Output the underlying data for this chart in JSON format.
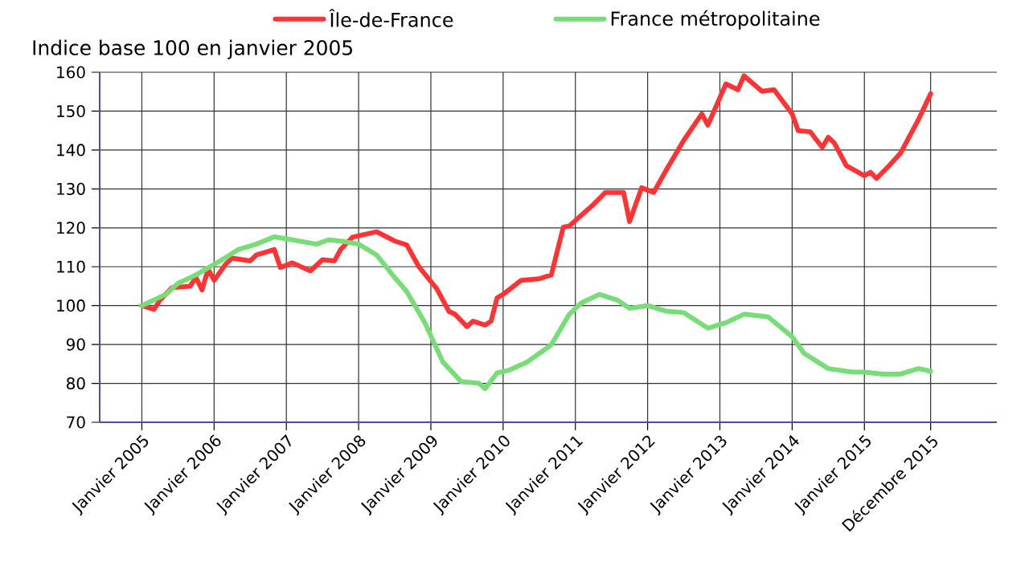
{
  "chart_data": {
    "type": "line",
    "title": "Indice base 100 en janvier 2005",
    "xlim": [
      "2004-06",
      "2016-11"
    ],
    "ylim": [
      70,
      160
    ],
    "xticks": [
      {
        "value": "2005-01",
        "label": "Janvier 2005"
      },
      {
        "value": "2006-01",
        "label": "Janvier 2006"
      },
      {
        "value": "2007-01",
        "label": "Janvier 2007"
      },
      {
        "value": "2008-01",
        "label": "Janvier 2008"
      },
      {
        "value": "2009-01",
        "label": "Janvier 2009"
      },
      {
        "value": "2010-01",
        "label": "Janvier 2010"
      },
      {
        "value": "2011-01",
        "label": "Janvier 2011"
      },
      {
        "value": "2012-01",
        "label": "Janvier 2012"
      },
      {
        "value": "2013-01",
        "label": "Janvier 2013"
      },
      {
        "value": "2014-01",
        "label": "Janvier 2014"
      },
      {
        "value": "2015-01",
        "label": "Janvier 2015"
      },
      {
        "value": "2015-12",
        "label": "Décembre 2015"
      }
    ],
    "yticks": [
      70,
      80,
      90,
      100,
      110,
      120,
      130,
      140,
      150,
      160
    ],
    "grid": true,
    "legend": "top",
    "marker": "none",
    "line_style": "solid",
    "series": [
      {
        "name": "Île-de-France",
        "color": "#ff3333",
        "x": [
          "2005-01",
          "2005-03",
          "2005-04",
          "2005-06",
          "2005-09",
          "2005-10",
          "2005-11",
          "2005-12",
          "2006-01",
          "2006-03",
          "2006-04",
          "2006-07",
          "2006-08",
          "2006-11",
          "2006-12",
          "2007-02",
          "2007-05",
          "2007-07",
          "2007-09",
          "2007-10",
          "2007-12",
          "2008-04",
          "2008-07",
          "2008-09",
          "2008-11",
          "2009-02",
          "2009-04",
          "2009-05",
          "2009-07",
          "2009-08",
          "2009-10",
          "2009-11",
          "2009-12",
          "2010-01",
          "2010-04",
          "2010-07",
          "2010-09",
          "2010-11",
          "2010-12",
          "2011-04",
          "2011-06",
          "2011-09",
          "2011-10",
          "2011-12",
          "2012-02",
          "2012-04",
          "2012-07",
          "2012-10",
          "2012-11",
          "2013-02",
          "2013-04",
          "2013-05",
          "2013-08",
          "2013-10",
          "2014-01",
          "2014-02",
          "2014-04",
          "2014-06",
          "2014-07",
          "2014-08",
          "2014-10",
          "2015-01",
          "2015-02",
          "2015-03",
          "2015-05",
          "2015-07",
          "2015-09",
          "2015-10",
          "2015-12"
        ],
        "values": [
          100,
          99,
          101.4,
          104.6,
          105,
          107.2,
          104,
          109.4,
          106.5,
          110.8,
          112.2,
          111.5,
          113,
          114.4,
          109.8,
          111,
          108.9,
          111.8,
          111.5,
          114.4,
          117.6,
          119,
          116.6,
          115.6,
          110,
          104.3,
          98.5,
          97.8,
          94.6,
          96,
          95,
          96,
          102,
          102.9,
          106.5,
          106.9,
          107.9,
          120.2,
          120.5,
          126,
          129.1,
          129.1,
          121.6,
          130.3,
          129.1,
          134.6,
          142.5,
          149.3,
          146.4,
          157,
          155.5,
          159.1,
          155.1,
          155.5,
          149.3,
          145,
          144.7,
          140.7,
          143.3,
          141.8,
          136,
          133.4,
          134.3,
          132.7,
          135.8,
          139.2,
          145,
          147.9,
          154.5
        ]
      },
      {
        "name": "France métropolitaine",
        "color": "#77dd77",
        "x": [
          "2005-01",
          "2005-05",
          "2005-07",
          "2005-10",
          "2006-02",
          "2006-05",
          "2006-08",
          "2006-11",
          "2007-02",
          "2007-06",
          "2007-08",
          "2007-10",
          "2008-01",
          "2008-04",
          "2008-07",
          "2008-09",
          "2008-12",
          "2009-03",
          "2009-06",
          "2009-09",
          "2009-10",
          "2009-12",
          "2010-02",
          "2010-05",
          "2010-07",
          "2010-09",
          "2010-12",
          "2011-02",
          "2011-05",
          "2011-08",
          "2011-10",
          "2012-01",
          "2012-04",
          "2012-07",
          "2012-11",
          "2013-02",
          "2013-05",
          "2013-09",
          "2014-01",
          "2014-03",
          "2014-07",
          "2014-11",
          "2015-01",
          "2015-04",
          "2015-07",
          "2015-10",
          "2015-12"
        ],
        "values": [
          100,
          102.9,
          105.7,
          107.9,
          111.5,
          114.4,
          115.8,
          117.7,
          116.9,
          115.8,
          116.9,
          116.6,
          115.8,
          113,
          107.2,
          103.6,
          95.6,
          85.5,
          80.5,
          80,
          78.6,
          82.7,
          83.4,
          85.5,
          87.7,
          89.9,
          97.8,
          100.7,
          102.9,
          101.4,
          99.3,
          100,
          98.6,
          98.2,
          94.2,
          95.6,
          97.8,
          97.1,
          92,
          87.7,
          83.8,
          82.9,
          82.9,
          82.4,
          82.4,
          83.8,
          83.1
        ]
      }
    ]
  }
}
